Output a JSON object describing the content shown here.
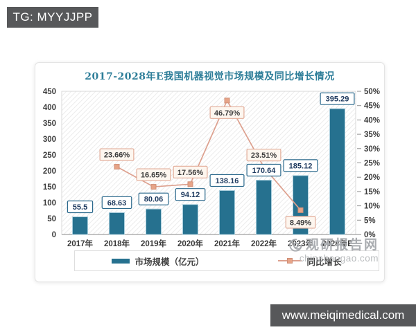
{
  "badge": {
    "text": "TG: MYYJJPP"
  },
  "banner": {
    "text": "www.meiqimedical.com"
  },
  "watermark": {
    "site_name": "观研报告网",
    "site_domain": "chinabaogao.com"
  },
  "chart_data": {
    "type": "bar+line",
    "title": "2017-2028年E我国机器视觉市场规模及同比增长情况",
    "categories": [
      "2017年",
      "2018年",
      "2019年",
      "2020年",
      "2021年",
      "2022年",
      "2023年",
      "2028年E"
    ],
    "series": [
      {
        "name": "市场规模（亿元）",
        "type": "bar",
        "axis": "left",
        "color": "#26718f",
        "values": [
          55.5,
          68.63,
          80.06,
          94.12,
          138.16,
          170.64,
          185.12,
          395.29
        ],
        "labels": [
          "55.5",
          "68.63",
          "80.06",
          "94.12",
          "138.16",
          "170.64",
          "185.12",
          "395.29"
        ]
      },
      {
        "name": "同比增长",
        "type": "line",
        "axis": "right",
        "color": "#dda08e",
        "values": [
          null,
          23.66,
          16.65,
          17.56,
          46.79,
          23.51,
          8.49,
          null
        ],
        "labels": [
          null,
          "23.66%",
          "16.65%",
          "17.56%",
          "46.79%",
          "23.51%",
          "8.49%",
          null
        ],
        "label_side": [
          null,
          "above",
          "above",
          "above",
          "below",
          "above",
          "below",
          null
        ]
      }
    ],
    "left_axis": {
      "min": 0,
      "max": 450,
      "step": 50,
      "ticks": [
        "0",
        "50",
        "100",
        "150",
        "200",
        "250",
        "300",
        "350",
        "400",
        "450"
      ]
    },
    "right_axis": {
      "min": 0,
      "max": 50,
      "step": 5,
      "unit": "%",
      "ticks": [
        "0%",
        "5%",
        "10%",
        "15%",
        "20%",
        "25%",
        "30%",
        "35%",
        "40%",
        "45%",
        "50%"
      ]
    },
    "legend": [
      {
        "label": "市场规模（亿元）",
        "swatch": "bar"
      },
      {
        "label": "同比增长",
        "swatch": "line"
      }
    ],
    "grid": false,
    "plot_background": "diagonal-hatch",
    "legend_position": "bottom"
  }
}
